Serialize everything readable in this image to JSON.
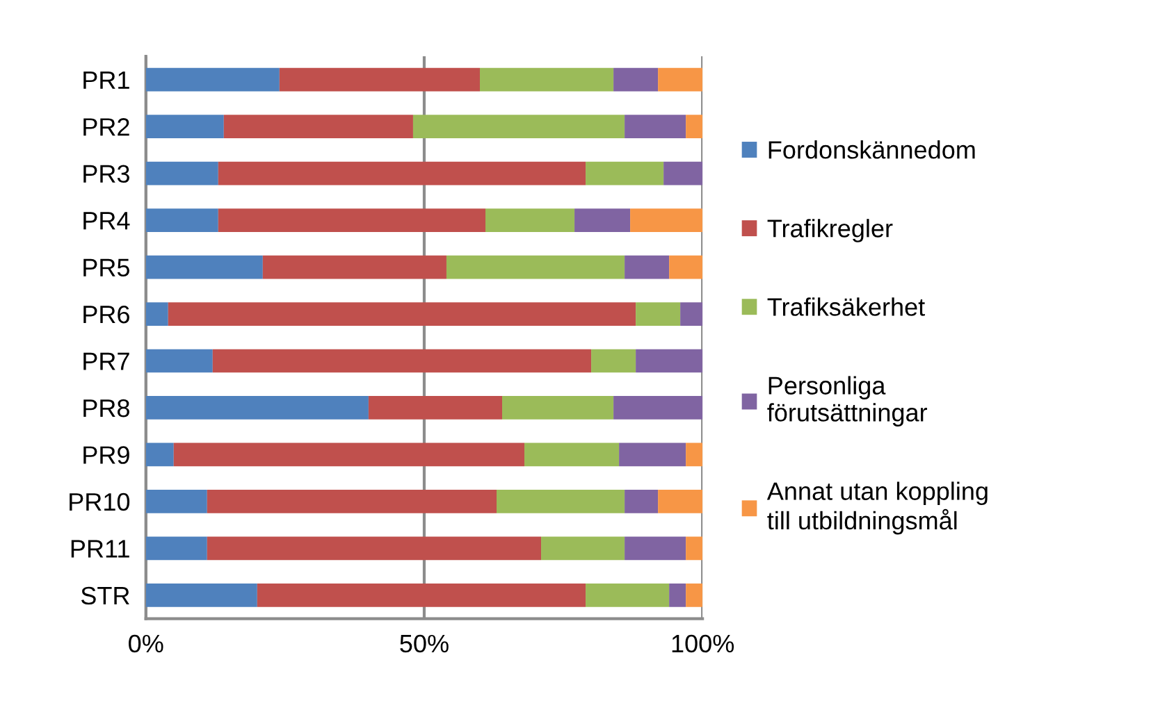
{
  "chart_data": {
    "type": "bar",
    "orientation": "horizontal",
    "stacked": true,
    "categories": [
      "PR1",
      "PR2",
      "PR3",
      "PR4",
      "PR5",
      "PR6",
      "PR7",
      "PR8",
      "PR9",
      "PR10",
      "PR11",
      "STR"
    ],
    "series": [
      {
        "name": "Fordonskännedom",
        "color": "#4f81bd",
        "values": [
          24,
          14,
          13,
          13,
          21,
          4,
          12,
          40,
          5,
          11,
          11,
          20
        ]
      },
      {
        "name": "Trafikregler",
        "color": "#c0504d",
        "values": [
          36,
          34,
          66,
          48,
          33,
          84,
          68,
          24,
          63,
          52,
          60,
          59
        ]
      },
      {
        "name": "Trafiksäkerhet",
        "color": "#9bbb59",
        "values": [
          24,
          38,
          14,
          16,
          32,
          8,
          8,
          20,
          17,
          23,
          15,
          15
        ]
      },
      {
        "name": "Personliga förutsättningar",
        "color": "#8064a2",
        "values": [
          8,
          11,
          7,
          10,
          8,
          4,
          12,
          16,
          12,
          6,
          11,
          3
        ]
      },
      {
        "name": "Annat utan koppling till utbildningsmål",
        "color": "#f79646",
        "values": [
          8,
          3,
          0,
          13,
          6,
          0,
          0,
          0,
          3,
          8,
          3,
          3
        ]
      }
    ],
    "xlim": [
      0,
      100
    ],
    "xticks": [
      {
        "value": 0,
        "label": "0%"
      },
      {
        "value": 50,
        "label": "50%"
      },
      {
        "value": 100,
        "label": "100%"
      }
    ],
    "grid": "x",
    "legend": "right"
  }
}
